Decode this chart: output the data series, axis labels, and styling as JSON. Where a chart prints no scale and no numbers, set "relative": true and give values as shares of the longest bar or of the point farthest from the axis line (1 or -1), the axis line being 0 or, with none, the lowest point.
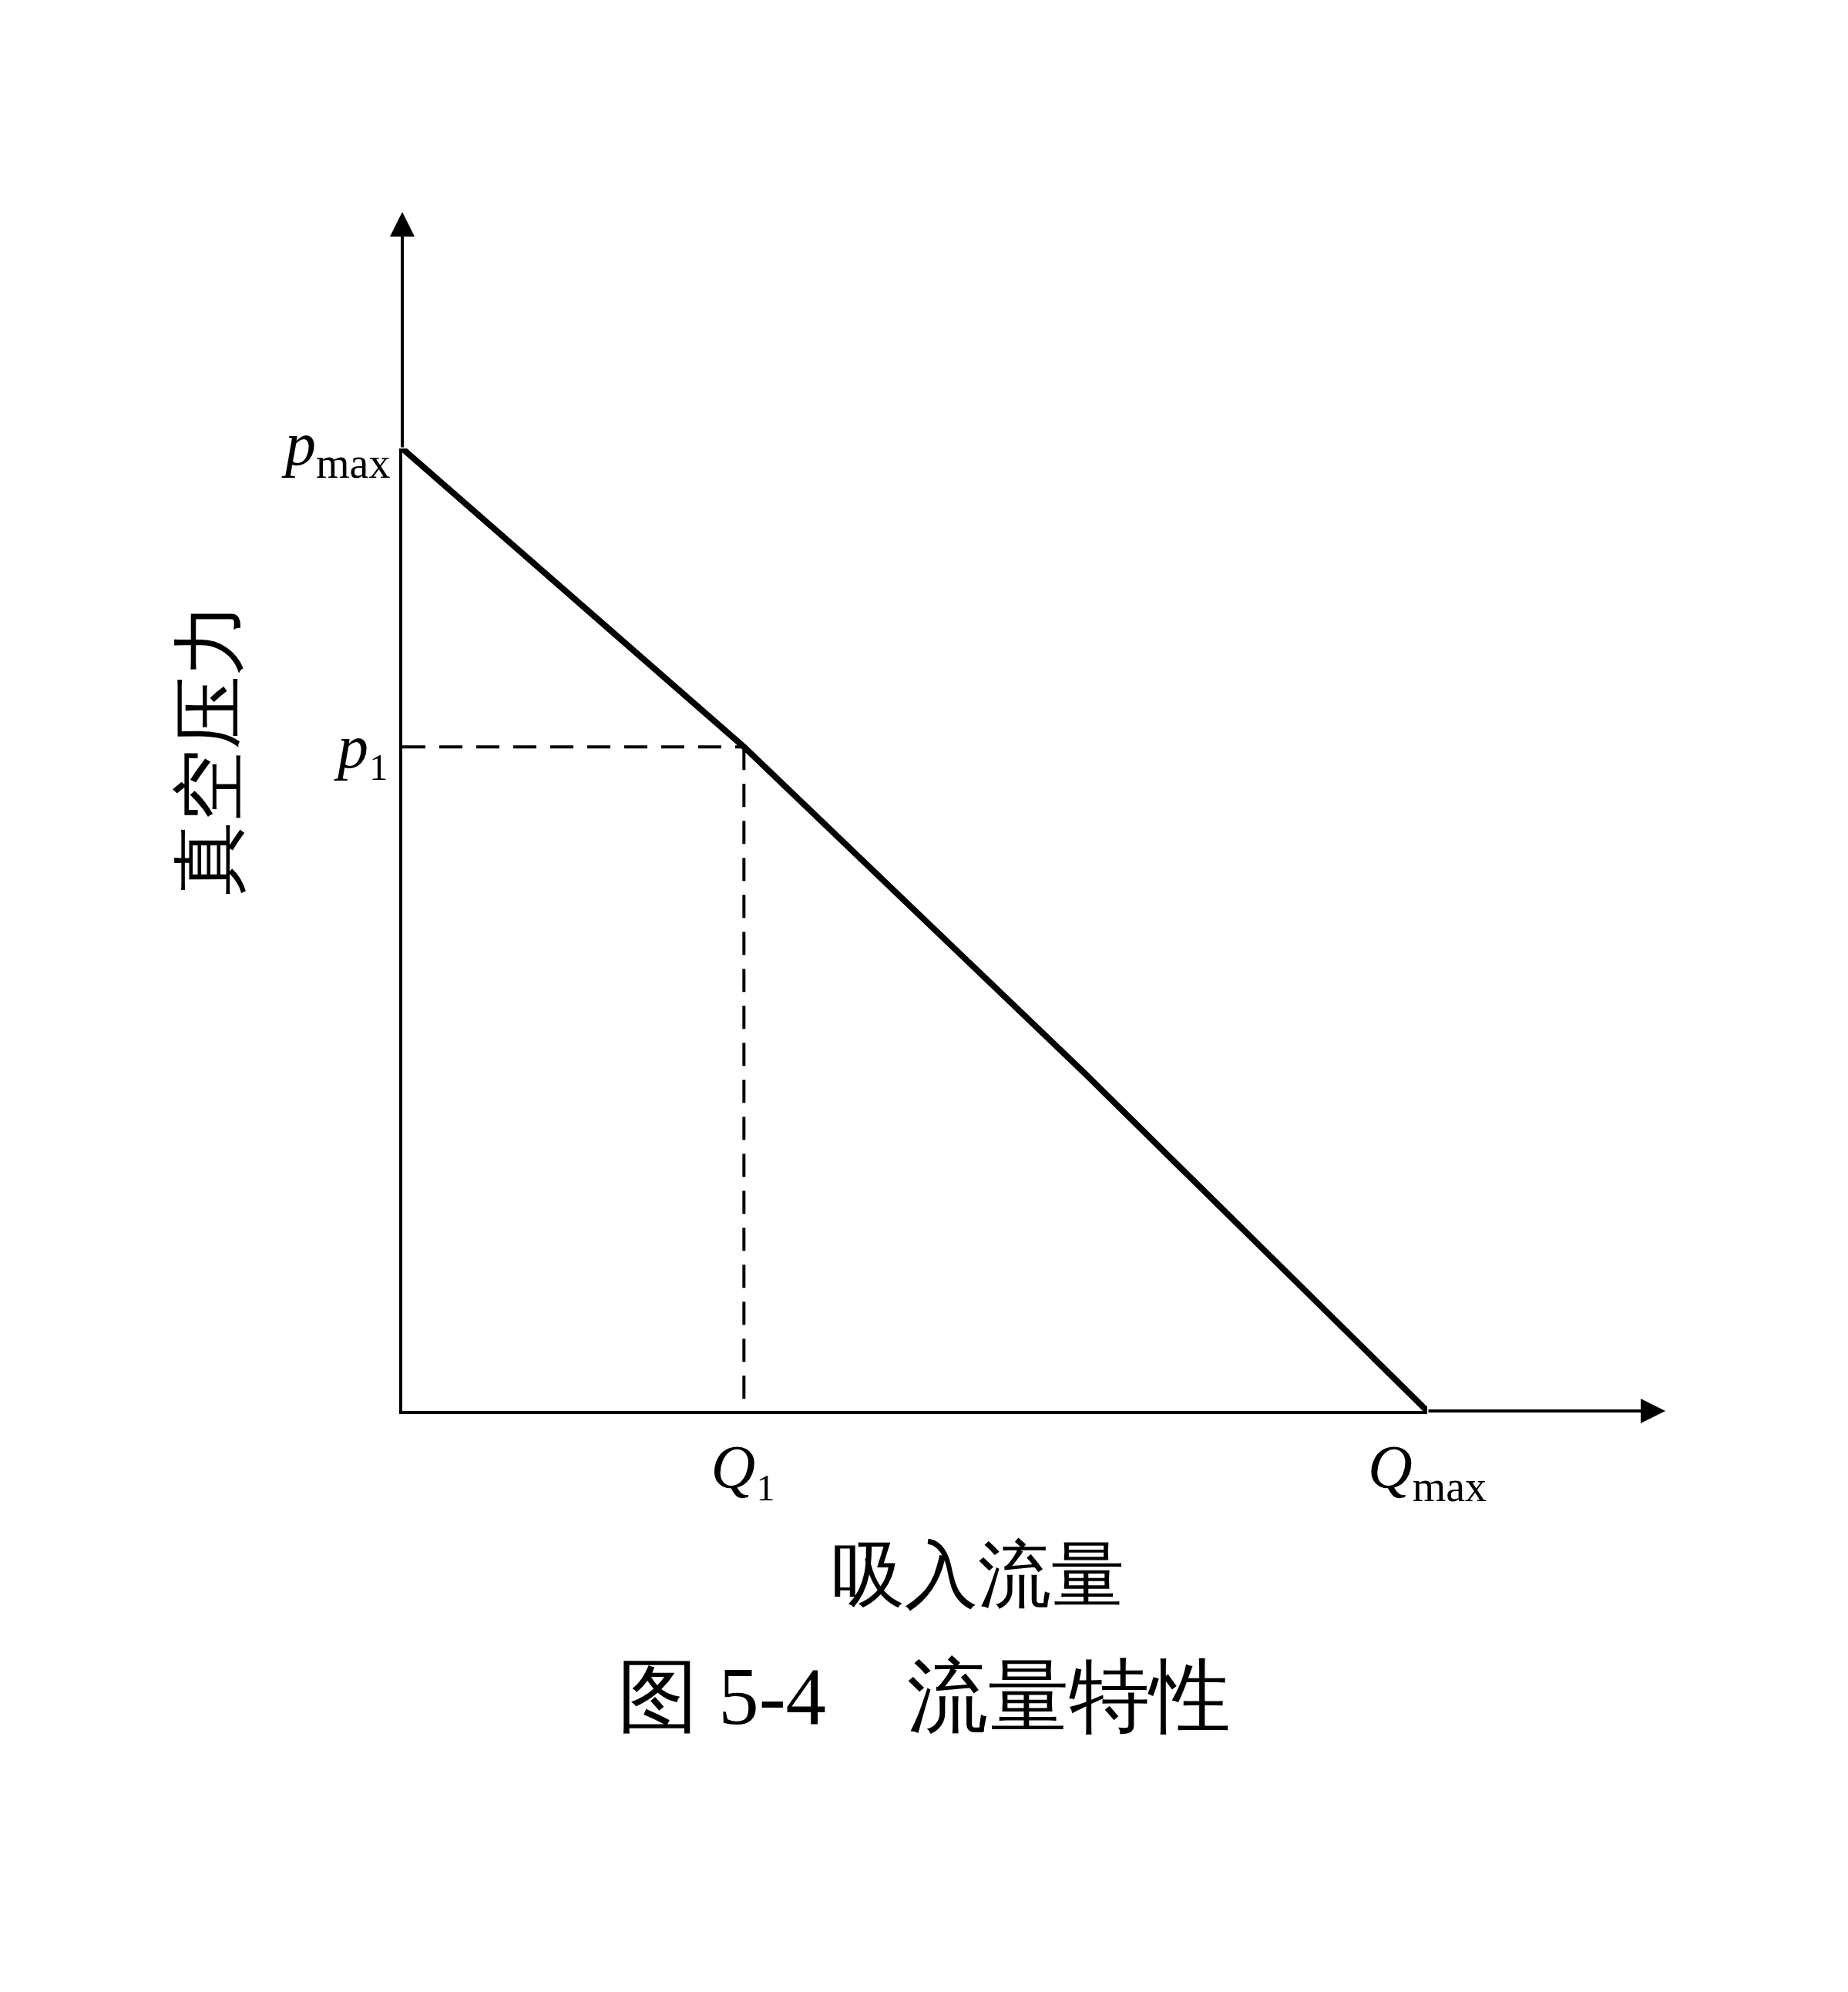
{
  "chart_data": {
    "type": "line",
    "title": "图 5-4　流量特性",
    "xlabel": "吸入流量",
    "ylabel": "真空压力",
    "relative": true,
    "categories": [
      null,
      "Q₁",
      null,
      "Q$_{max}$"
    ],
    "series": [
      {
        "values": [
          1,
          0.69,
          0.35,
          0
        ],
        "color": "#000000",
        "line_style": "solid"
      },
      {
        "values": [
          0.69,
          0.69,
          null,
          null
        ],
        "color": "#000000",
        "line_style": "dashed"
      },
      {
        "x": [
          "Q₁",
          "Q₁"
        ],
        "values": [
          0.69,
          0
        ],
        "color": "#000000",
        "line_style": "dashed"
      }
    ],
    "annotations": [
      "p$_{max}$",
      "p₁"
    ]
  }
}
